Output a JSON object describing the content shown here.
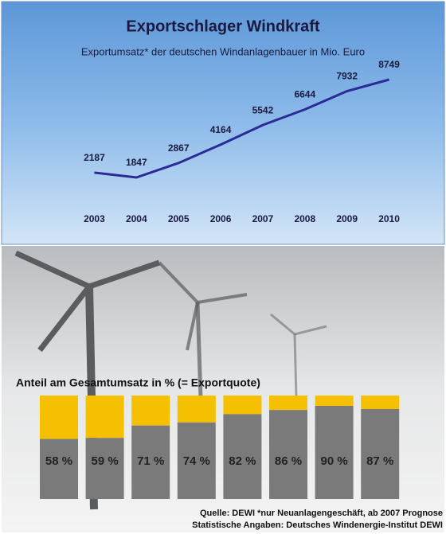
{
  "chart_data": [
    {
      "type": "line",
      "title": "Exportschlager Windkraft",
      "subtitle": "Exportumsatz* der deutschen Windanlagenbauer in Mio. Euro",
      "categories": [
        "2003",
        "2004",
        "2005",
        "2006",
        "2007",
        "2008",
        "2009",
        "2010"
      ],
      "values": [
        2187,
        1847,
        2867,
        4164,
        5542,
        6644,
        7932,
        8749
      ],
      "color": "#2b2b96"
    },
    {
      "type": "bar",
      "title": "Anteil am Gesamtumsatz in % (= Exportquote)",
      "values": [
        58,
        59,
        71,
        74,
        82,
        86,
        90,
        87
      ],
      "value_labels": [
        "58 %",
        "59 %",
        "71 %",
        "74 %",
        "82 %",
        "86 %",
        "90 %",
        "87 %"
      ],
      "ylim": [
        0,
        100
      ],
      "color": "#7a7a7a",
      "rest_color": "#f5c000"
    }
  ],
  "footer": [
    "Quelle: DEWI *nur Neuanlagengeschäft, ab 2007 Prognose",
    "Statistische Angaben: Deutsches Windenergie-Institut DEWI"
  ]
}
